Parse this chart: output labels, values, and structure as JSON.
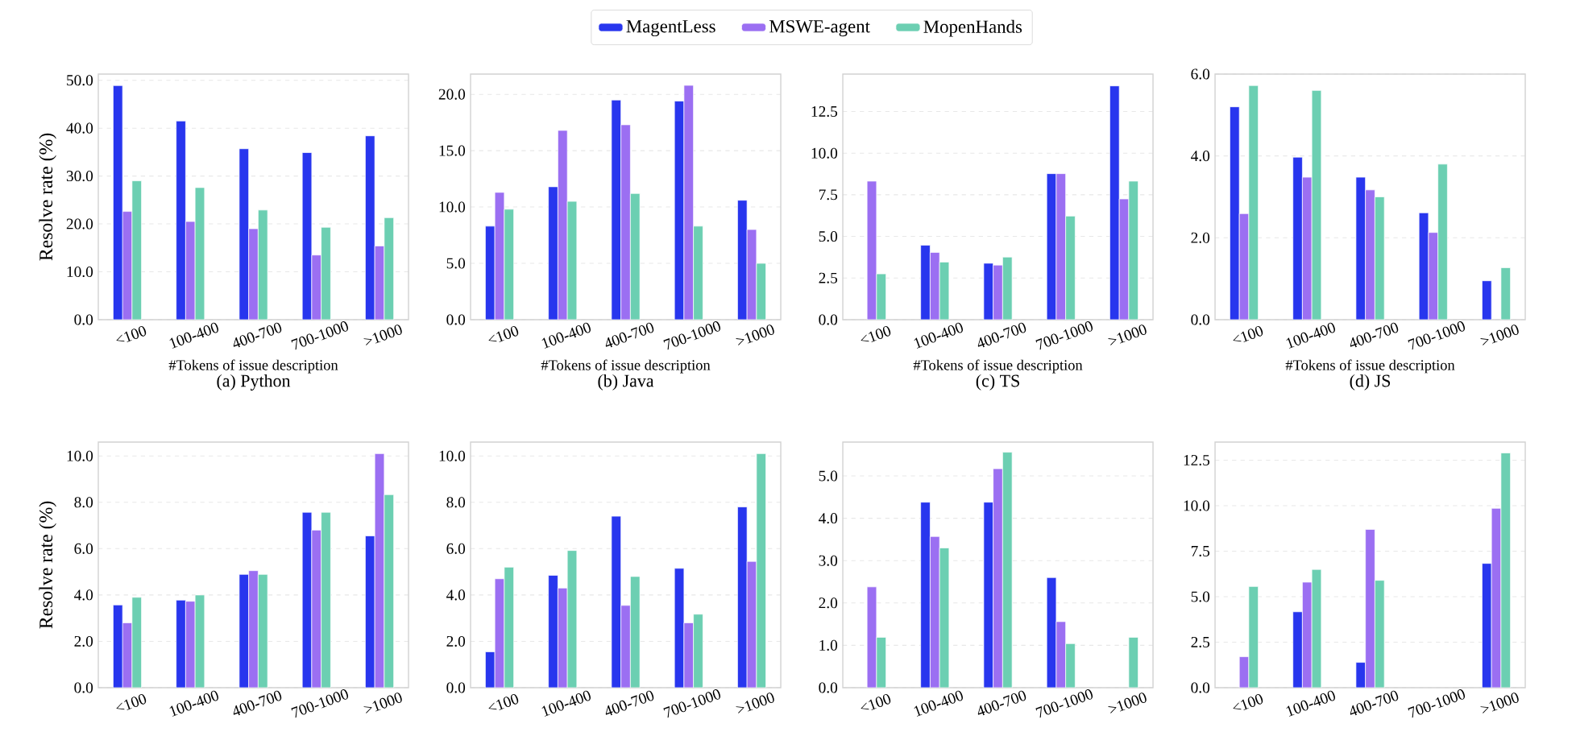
{
  "chart_data": [
    {
      "type": "bar",
      "title": "(a) Python",
      "xlabel": "#Tokens of issue description",
      "ylabel": "Resolve rate (%)",
      "legend": "top",
      "grid": "y",
      "categories": [
        "<100",
        "100-400",
        "400-700",
        "700-1000",
        ">1000"
      ],
      "series": [
        {
          "name": "MagentLess",
          "color": "#2836ee",
          "values": [
            48.9,
            41.5,
            35.7,
            34.9,
            38.4
          ]
        },
        {
          "name": "MSWE-agent",
          "color": "#9b6ff2",
          "values": [
            22.6,
            20.5,
            19.0,
            13.5,
            15.4
          ]
        },
        {
          "name": "MopenHands",
          "color": "#6ccfb2",
          "values": [
            29.0,
            27.6,
            22.9,
            19.3,
            21.3
          ]
        }
      ],
      "ylim": [
        0,
        51.3
      ],
      "yticks": [
        {
          "value": 0,
          "label": "0.0"
        },
        {
          "value": 10,
          "label": "10.0"
        },
        {
          "value": 20,
          "label": "20.0"
        },
        {
          "value": 30,
          "label": "30.0"
        },
        {
          "value": 40,
          "label": "40.0"
        },
        {
          "value": 50,
          "label": "50.0"
        }
      ]
    },
    {
      "type": "bar",
      "title": "(b) Java",
      "xlabel": "#Tokens of issue description",
      "grid": "y",
      "categories": [
        "<100",
        "100-400",
        "400-700",
        "700-1000",
        ">1000"
      ],
      "series": [
        {
          "color": "#2836ee",
          "values": [
            8.3,
            11.8,
            19.5,
            19.4,
            10.6
          ]
        },
        {
          "color": "#9b6ff2",
          "values": [
            11.3,
            16.8,
            17.3,
            20.8,
            8.0
          ]
        },
        {
          "color": "#6ccfb2",
          "values": [
            9.8,
            10.5,
            11.2,
            8.3,
            5.0
          ]
        }
      ],
      "ylim": [
        0,
        21.8
      ],
      "yticks": [
        {
          "value": 0,
          "label": "0.0"
        },
        {
          "value": 5,
          "label": "5.0"
        },
        {
          "value": 10,
          "label": "10.0"
        },
        {
          "value": 15,
          "label": "15.0"
        },
        {
          "value": 20,
          "label": "20.0"
        }
      ]
    },
    {
      "type": "bar",
      "title": "(c) TS",
      "xlabel": "#Tokens of issue description",
      "grid": "y",
      "categories": [
        "<100",
        "100-400",
        "400-700",
        "700-1000",
        ">1000"
      ],
      "series": [
        {
          "color": "#2836ee",
          "values": [
            null,
            4.47,
            3.39,
            8.77,
            14.04
          ]
        },
        {
          "color": "#9b6ff2",
          "values": [
            8.32,
            4.04,
            3.28,
            8.77,
            7.25
          ]
        },
        {
          "color": "#6ccfb2",
          "values": [
            2.75,
            3.46,
            3.76,
            6.22,
            8.32
          ]
        }
      ],
      "ylim": [
        0,
        14.75
      ],
      "yticks": [
        {
          "value": 0,
          "label": "0.0"
        },
        2.5,
        {
          "value": 5,
          "label": "5.0"
        },
        7.5,
        {
          "value": 10,
          "label": "10.0"
        },
        12.5
      ]
    },
    {
      "type": "bar",
      "title": "(d) JS",
      "xlabel": "#Tokens of issue description",
      "grid": "y",
      "categories": [
        "<100",
        "100-400",
        "400-700",
        "700-1000",
        ">1000"
      ],
      "series": [
        {
          "color": "#2836ee",
          "values": [
            5.2,
            3.97,
            3.48,
            2.61,
            0.95
          ]
        },
        {
          "color": "#9b6ff2",
          "values": [
            2.59,
            3.48,
            3.17,
            2.13,
            null
          ]
        },
        {
          "color": "#6ccfb2",
          "values": [
            5.72,
            5.6,
            3.0,
            3.8,
            1.27
          ]
        }
      ],
      "ylim": [
        0,
        6.0
      ],
      "yticks": [
        {
          "value": 0,
          "label": "0.0"
        },
        {
          "value": 2,
          "label": "2.0"
        },
        {
          "value": 4,
          "label": "4.0"
        },
        {
          "value": 6,
          "label": "6.0"
        }
      ]
    },
    {
      "type": "bar",
      "ylabel": "Resolve rate (%)",
      "grid": "y",
      "categories": [
        "<100",
        "100-400",
        "400-700",
        "700-1000",
        ">1000"
      ],
      "series": [
        {
          "color": "#2836ee",
          "values": [
            3.57,
            3.78,
            4.89,
            7.57,
            6.55
          ]
        },
        {
          "color": "#9b6ff2",
          "values": [
            2.8,
            3.73,
            5.05,
            6.8,
            10.1
          ]
        },
        {
          "color": "#6ccfb2",
          "values": [
            3.9,
            4.0,
            4.89,
            7.57,
            8.33
          ]
        }
      ],
      "ylim": [
        0,
        10.6
      ],
      "yticks": [
        {
          "value": 0,
          "label": "0.0"
        },
        {
          "value": 2,
          "label": "2.0"
        },
        {
          "value": 4,
          "label": "4.0"
        },
        {
          "value": 6,
          "label": "6.0"
        },
        {
          "value": 8,
          "label": "8.0"
        },
        {
          "value": 10,
          "label": "10.0"
        }
      ]
    },
    {
      "type": "bar",
      "grid": "y",
      "categories": [
        "<100",
        "100-400",
        "400-700",
        "700-1000",
        ">1000"
      ],
      "series": [
        {
          "color": "#2836ee",
          "values": [
            1.55,
            4.85,
            7.4,
            5.15,
            7.8
          ]
        },
        {
          "color": "#9b6ff2",
          "values": [
            4.7,
            4.3,
            3.55,
            2.8,
            5.45
          ]
        },
        {
          "color": "#6ccfb2",
          "values": [
            5.2,
            5.92,
            4.8,
            3.17,
            10.1
          ]
        }
      ],
      "ylim": [
        0,
        10.6
      ],
      "yticks": [
        {
          "value": 0,
          "label": "0.0"
        },
        {
          "value": 2,
          "label": "2.0"
        },
        {
          "value": 4,
          "label": "4.0"
        },
        {
          "value": 6,
          "label": "6.0"
        },
        {
          "value": 8,
          "label": "8.0"
        },
        {
          "value": 10,
          "label": "10.0"
        }
      ]
    },
    {
      "type": "bar",
      "grid": "y",
      "categories": [
        "<100",
        "100-400",
        "400-700",
        "700-1000",
        ">1000"
      ],
      "series": [
        {
          "color": "#2836ee",
          "values": [
            null,
            4.38,
            4.38,
            2.6,
            null
          ]
        },
        {
          "color": "#9b6ff2",
          "values": [
            2.38,
            3.57,
            5.17,
            1.56,
            null
          ]
        },
        {
          "color": "#6ccfb2",
          "values": [
            1.19,
            3.3,
            5.56,
            1.04,
            1.19
          ]
        }
      ],
      "ylim": [
        0,
        5.8
      ],
      "yticks": [
        {
          "value": 0,
          "label": "0.0"
        },
        {
          "value": 1,
          "label": "1.0"
        },
        {
          "value": 2,
          "label": "2.0"
        },
        {
          "value": 3,
          "label": "3.0"
        },
        {
          "value": 4,
          "label": "4.0"
        },
        {
          "value": 5,
          "label": "5.0"
        }
      ]
    },
    {
      "type": "bar",
      "grid": "y",
      "categories": [
        "<100",
        "100-400",
        "400-700",
        "700-1000",
        ">1000"
      ],
      "series": [
        {
          "color": "#2836ee",
          "values": [
            null,
            4.17,
            1.39,
            null,
            6.83
          ]
        },
        {
          "color": "#9b6ff2",
          "values": [
            1.7,
            5.8,
            8.7,
            null,
            9.86
          ]
        },
        {
          "color": "#6ccfb2",
          "values": [
            5.56,
            6.5,
            5.9,
            null,
            12.9
          ]
        }
      ],
      "ylim": [
        0,
        13.5
      ],
      "yticks": [
        {
          "value": 0,
          "label": "0.0"
        },
        2.5,
        {
          "value": 5,
          "label": "5.0"
        },
        7.5,
        {
          "value": 10,
          "label": "10.0"
        },
        12.5
      ]
    }
  ]
}
